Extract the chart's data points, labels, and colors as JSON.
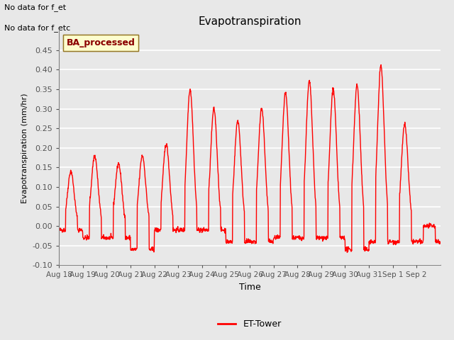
{
  "title": "Evapotranspiration",
  "ylabel": "Evapotranspiration (mm/hr)",
  "xlabel": "Time",
  "ylim": [
    -0.1,
    0.5
  ],
  "yticks": [
    -0.1,
    -0.05,
    0.0,
    0.05,
    0.1,
    0.15,
    0.2,
    0.25,
    0.3,
    0.35,
    0.4,
    0.45
  ],
  "bg_color": "#e8e8e8",
  "plot_bg_color": "#e8e8e8",
  "line_color": "#ff0000",
  "line_width": 1.0,
  "legend_label": "ET-Tower",
  "legend_box_color": "#ffffcc",
  "legend_box_edge": "#8b6914",
  "text_upper_left_line1": "No data for f_et",
  "text_upper_left_line2": "No data for f_etc",
  "ba_processed_label": "BA_processed",
  "x_tick_labels": [
    "Aug 18",
    "Aug 19",
    "Aug 20",
    "Aug 21",
    "Aug 22",
    "Aug 23",
    "Aug 24",
    "Aug 25",
    "Aug 26",
    "Aug 27",
    "Aug 28",
    "Aug 29",
    "Aug 30",
    "Aug 31",
    "Sep 1",
    "Sep 2"
  ],
  "num_days": 16,
  "day_peaks": [
    0.14,
    0.18,
    0.16,
    0.18,
    0.21,
    0.35,
    0.3,
    0.27,
    0.3,
    0.34,
    0.37,
    0.35,
    0.36,
    0.41,
    0.26,
    0.0
  ],
  "day_neg": [
    -0.01,
    -0.03,
    -0.03,
    -0.06,
    -0.01,
    -0.01,
    -0.01,
    -0.04,
    -0.04,
    -0.03,
    -0.03,
    -0.03,
    -0.06,
    -0.04,
    -0.04,
    -0.04
  ]
}
